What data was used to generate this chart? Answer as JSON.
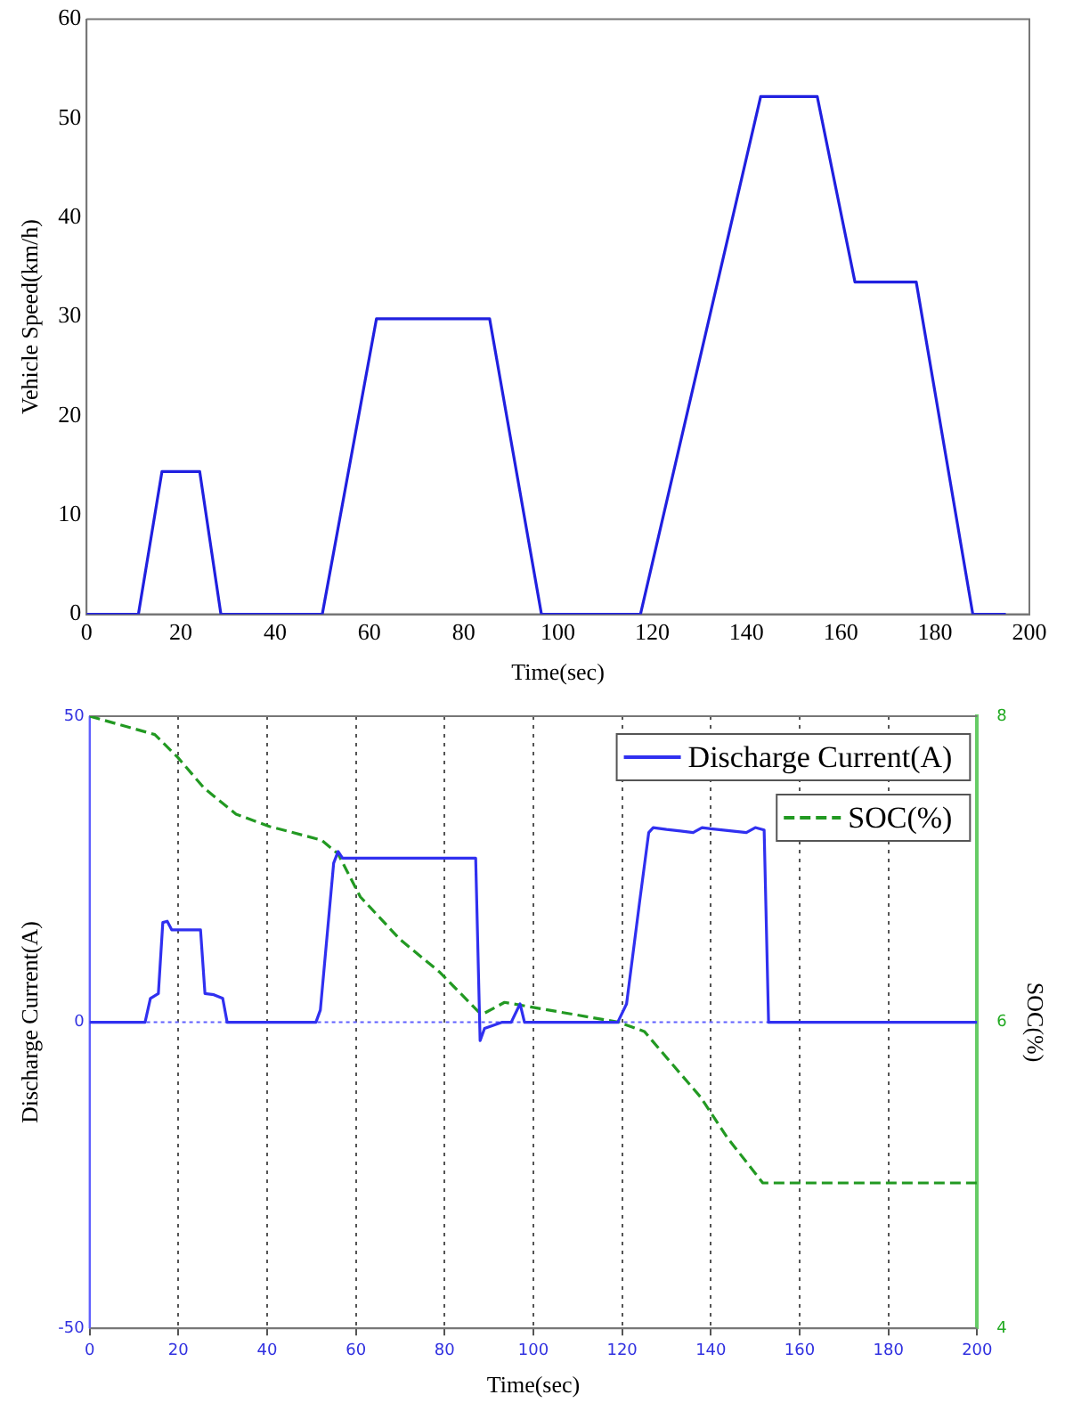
{
  "chart_data": [
    {
      "type": "line",
      "xlabel": "Time(sec)",
      "ylabel": "Vehicle Speed(km/h)",
      "xlim": [
        0,
        200
      ],
      "xticks": [
        0,
        20,
        40,
        60,
        80,
        100,
        120,
        140,
        160,
        180,
        200
      ],
      "ylim": [
        0,
        60
      ],
      "yticks": [
        0,
        10,
        20,
        30,
        40,
        50,
        60
      ],
      "grid": false,
      "legend": false,
      "marker": "none",
      "line_style": "solid",
      "series": [
        {
          "color": "#2020e0",
          "x": [
            0,
            11,
            16,
            24,
            28.5,
            50,
            61.5,
            85.5,
            96.5,
            117.5,
            143,
            155,
            163,
            176,
            188,
            195
          ],
          "values": [
            0,
            0,
            14.4,
            14.4,
            0,
            0,
            29.8,
            29.8,
            0,
            0,
            52.2,
            52.2,
            33.5,
            33.5,
            0,
            0
          ]
        }
      ]
    },
    {
      "type": "line",
      "xlabel": "Time(sec)",
      "ylabel": "Discharge Current(A)",
      "y2label": "SOC(%)",
      "xlim": [
        0,
        200
      ],
      "xticks": [
        0,
        20,
        40,
        60,
        80,
        100,
        120,
        140,
        160,
        180,
        200
      ],
      "ylim": [
        -50,
        50
      ],
      "yticks": [
        -50,
        0,
        50
      ],
      "y2lim": [
        4,
        8
      ],
      "y2ticks": [
        4,
        6,
        8
      ],
      "grid": "x",
      "legend": "top right",
      "marker": "none",
      "ref_lines": [
        {
          "axis": "y",
          "value": 0,
          "color": "#6060ff",
          "line_style": "dotted"
        }
      ],
      "series": [
        {
          "name": "Discharge Current(A)",
          "color": "#3030f0",
          "line_style": "solid",
          "x": [
            0,
            12.5,
            13.7,
            15.5,
            16.5,
            17.5,
            18.5,
            25,
            26,
            28,
            30,
            31,
            51,
            52,
            55,
            56,
            57,
            87,
            88,
            89,
            91,
            93,
            95,
            97,
            98,
            119,
            121,
            124,
            126,
            127,
            130,
            136,
            138,
            140,
            148,
            150,
            152,
            153,
            200
          ],
          "values": [
            0,
            0,
            3.9,
            4.7,
            16.3,
            16.5,
            15.1,
            15.1,
            4.7,
            4.5,
            3.9,
            0,
            0,
            2,
            26,
            27.9,
            26.8,
            26.8,
            -3,
            -1,
            -0.5,
            0,
            0,
            3,
            0,
            0,
            3,
            20,
            31,
            31.8,
            31.5,
            31,
            31.8,
            31.6,
            31,
            31.8,
            31.4,
            0,
            0
          ]
        },
        {
          "name": "SOC(%)",
          "color": "#229922",
          "axis": "y2",
          "line_style": "dashed",
          "x": [
            0,
            14.7,
            19.9,
            25.8,
            33,
            40.5,
            52.3,
            56,
            61,
            70,
            78.8,
            87.6,
            89,
            93.5,
            99.4,
            119.3,
            125,
            130,
            137.7,
            143.6,
            151.7,
            200
          ],
          "values": [
            8,
            7.88,
            7.73,
            7.53,
            7.36,
            7.28,
            7.19,
            7.1,
            6.82,
            6.54,
            6.33,
            6.07,
            6.06,
            6.13,
            6.1,
            6,
            5.94,
            5.77,
            5.51,
            5.25,
            4.95,
            4.95
          ]
        }
      ]
    }
  ]
}
